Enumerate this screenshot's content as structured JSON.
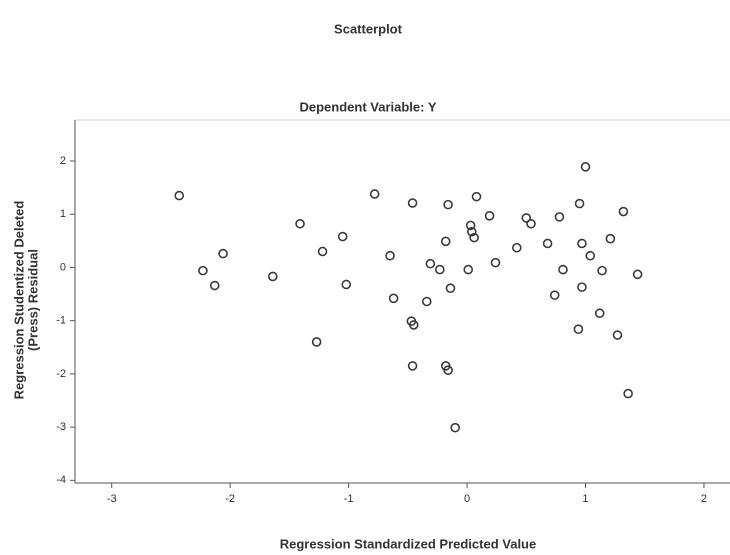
{
  "chart_data": {
    "type": "scatter",
    "title": "Scatterplot",
    "subtitle": "Dependent Variable: Y",
    "xlabel": "Regression Standardized Predicted Value",
    "ylabel": [
      "Regression Studentized Deleted",
      "(Press) Residual"
    ],
    "color": "#3a3a3a",
    "x": [
      -2.43,
      -2.23,
      -2.13,
      -2.06,
      -1.64,
      -1.41,
      -1.27,
      -1.22,
      -1.05,
      -1.02,
      -0.78,
      -0.65,
      -0.62,
      -0.46,
      -0.47,
      -0.45,
      -0.46,
      -0.34,
      -0.31,
      -0.23,
      -0.18,
      -0.16,
      -0.18,
      -0.16,
      -0.14,
      -0.1,
      0.01,
      0.03,
      0.04,
      0.06,
      0.08,
      0.19,
      0.24,
      0.42,
      0.5,
      0.54,
      0.68,
      0.74,
      0.78,
      0.81,
      0.94,
      0.95,
      0.97,
      0.97,
      1.0,
      1.04,
      1.12,
      1.14,
      1.21,
      1.27,
      1.32,
      1.36,
      1.44
    ],
    "y": [
      1.35,
      -0.06,
      -0.34,
      0.26,
      -0.17,
      0.82,
      -1.4,
      0.3,
      0.58,
      -0.32,
      1.38,
      0.22,
      -0.58,
      1.21,
      -1.01,
      -1.08,
      -1.85,
      -0.64,
      0.07,
      -0.04,
      0.49,
      1.18,
      -1.85,
      -1.93,
      -0.39,
      -3.01,
      -0.04,
      0.79,
      0.67,
      0.56,
      1.33,
      0.97,
      0.09,
      0.37,
      0.93,
      0.82,
      0.45,
      -0.52,
      0.95,
      -0.04,
      -1.16,
      1.2,
      0.45,
      -0.37,
      1.89,
      0.22,
      -0.86,
      -0.06,
      0.54,
      -1.27,
      1.05,
      -2.37,
      -0.13
    ],
    "xlim": [
      -3.31,
      2.22
    ],
    "ylim": [
      -4.05,
      2.77
    ],
    "xticks": [
      -3,
      -2,
      -1,
      0,
      1,
      2
    ],
    "yticks": [
      2,
      1,
      0,
      -1,
      -2,
      -3,
      -4
    ]
  }
}
